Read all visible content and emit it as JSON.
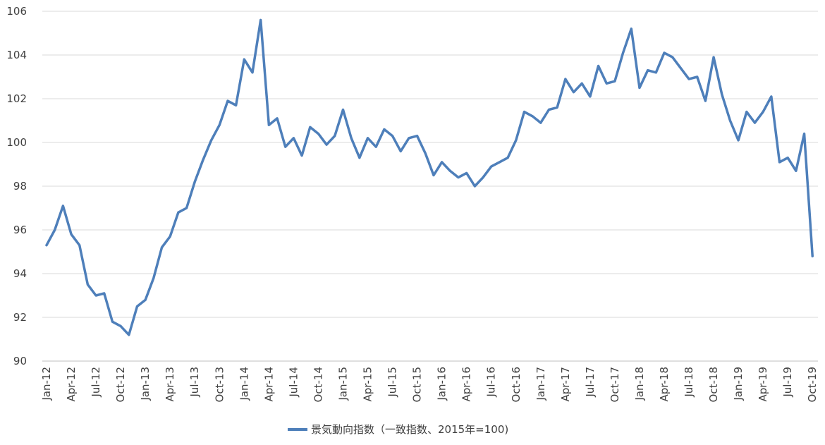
{
  "chart_data": {
    "type": "line",
    "title": "",
    "xlabel": "",
    "ylabel": "",
    "ylim": [
      90,
      106
    ],
    "y_ticks": [
      90,
      92,
      94,
      96,
      98,
      100,
      102,
      104,
      106
    ],
    "grid": true,
    "legend_position": "bottom",
    "x": [
      "Jan-12",
      "Feb-12",
      "Mar-12",
      "Apr-12",
      "May-12",
      "Jun-12",
      "Jul-12",
      "Aug-12",
      "Sep-12",
      "Oct-12",
      "Nov-12",
      "Dec-12",
      "Jan-13",
      "Feb-13",
      "Mar-13",
      "Apr-13",
      "May-13",
      "Jun-13",
      "Jul-13",
      "Aug-13",
      "Sep-13",
      "Oct-13",
      "Nov-13",
      "Dec-13",
      "Jan-14",
      "Feb-14",
      "Mar-14",
      "Apr-14",
      "May-14",
      "Jun-14",
      "Jul-14",
      "Aug-14",
      "Sep-14",
      "Oct-14",
      "Nov-14",
      "Dec-14",
      "Jan-15",
      "Feb-15",
      "Mar-15",
      "Apr-15",
      "May-15",
      "Jun-15",
      "Jul-15",
      "Aug-15",
      "Sep-15",
      "Oct-15",
      "Nov-15",
      "Dec-15",
      "Jan-16",
      "Feb-16",
      "Mar-16",
      "Apr-16",
      "May-16",
      "Jun-16",
      "Jul-16",
      "Aug-16",
      "Sep-16",
      "Oct-16",
      "Nov-16",
      "Dec-16",
      "Jan-17",
      "Feb-17",
      "Mar-17",
      "Apr-17",
      "May-17",
      "Jun-17",
      "Jul-17",
      "Aug-17",
      "Sep-17",
      "Oct-17",
      "Nov-17",
      "Dec-17",
      "Jan-18",
      "Feb-18",
      "Mar-18",
      "Apr-18",
      "May-18",
      "Jun-18",
      "Jul-18",
      "Aug-18",
      "Sep-18",
      "Oct-18",
      "Nov-18",
      "Dec-18",
      "Jan-19",
      "Feb-19",
      "Mar-19",
      "Apr-19",
      "May-19",
      "Jun-19",
      "Jul-19",
      "Aug-19",
      "Sep-19",
      "Oct-19"
    ],
    "x_tick_labels": [
      "Jan-12",
      "Apr-12",
      "Jul-12",
      "Oct-12",
      "Jan-13",
      "Apr-13",
      "Jul-13",
      "Oct-13",
      "Jan-14",
      "Apr-14",
      "Jul-14",
      "Oct-14",
      "Jan-15",
      "Apr-15",
      "Jul-15",
      "Oct-15",
      "Jan-16",
      "Apr-16",
      "Jul-16",
      "Oct-16",
      "Jan-17",
      "Apr-17",
      "Jul-17",
      "Oct-17",
      "Jan-18",
      "Apr-18",
      "Jul-18",
      "Oct-18",
      "Jan-19",
      "Apr-19",
      "Jul-19",
      "Oct-19"
    ],
    "series": [
      {
        "name": "景気動向指数（一致指数、2015年=100)",
        "color": "#4e7fba",
        "values": [
          95.3,
          96.0,
          97.1,
          95.8,
          95.3,
          93.5,
          93.0,
          93.1,
          91.8,
          91.6,
          91.2,
          92.5,
          92.8,
          93.8,
          95.2,
          95.7,
          96.8,
          97.0,
          98.2,
          99.2,
          100.1,
          100.8,
          101.9,
          101.7,
          103.8,
          103.2,
          105.6,
          100.8,
          101.1,
          99.8,
          100.2,
          99.4,
          100.7,
          100.4,
          99.9,
          100.3,
          101.5,
          100.2,
          99.3,
          100.2,
          99.8,
          100.6,
          100.3,
          99.6,
          100.2,
          100.3,
          99.5,
          98.5,
          99.1,
          98.7,
          98.4,
          98.6,
          98.0,
          98.4,
          98.9,
          99.1,
          99.3,
          100.1,
          101.4,
          101.2,
          100.9,
          101.5,
          101.6,
          102.9,
          102.3,
          102.7,
          102.1,
          103.5,
          102.7,
          102.8,
          104.1,
          105.2,
          102.5,
          103.3,
          103.2,
          104.1,
          103.9,
          103.4,
          102.9,
          103.0,
          101.9,
          103.9,
          102.2,
          101.0,
          100.1,
          101.4,
          100.9,
          101.4,
          102.1,
          99.1,
          99.3,
          98.7,
          100.4,
          94.8
        ]
      }
    ]
  }
}
